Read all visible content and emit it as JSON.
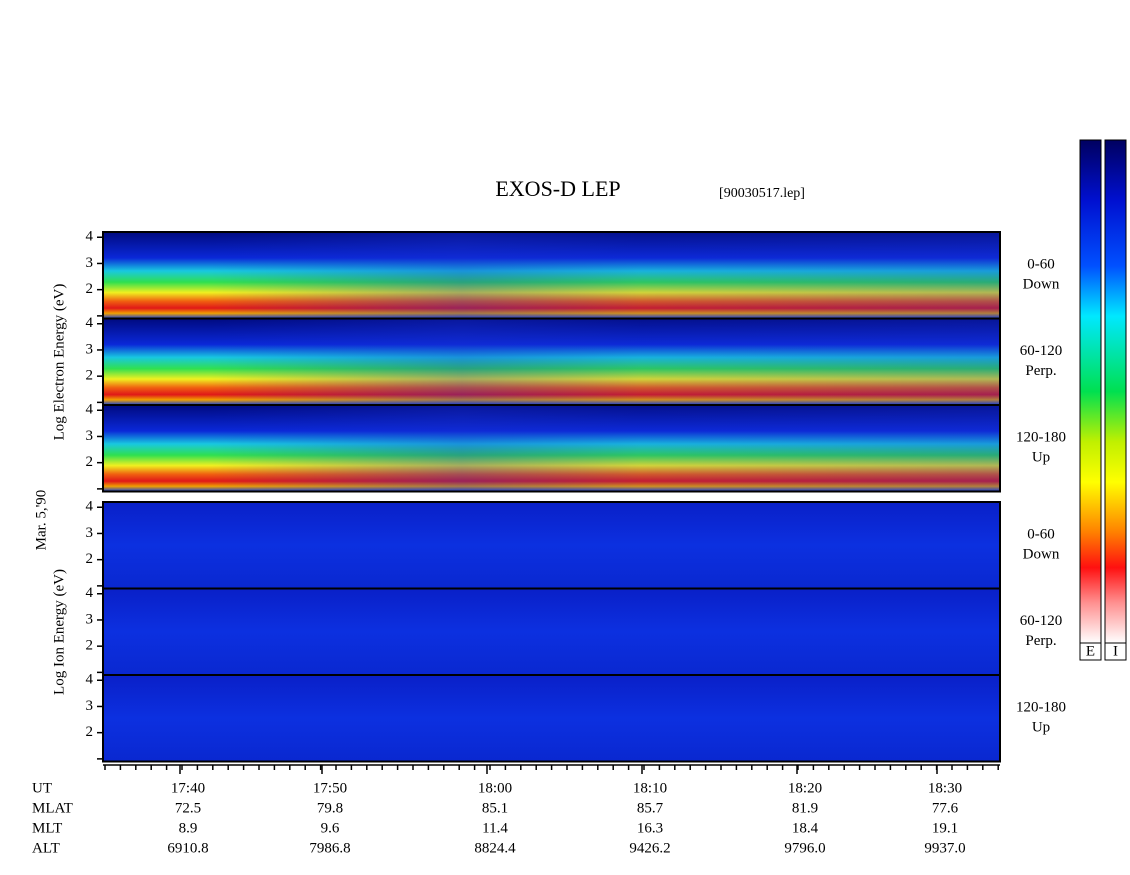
{
  "title": "EXOS-D LEP",
  "file": "[90030517.lep]",
  "date": "Mar. 5,'90",
  "energy_axis": {
    "ylim": [
      0.9,
      4.2
    ],
    "yticks": [
      2,
      3,
      4
    ]
  },
  "electron": {
    "axis_label": "Log Electron Energy (eV)",
    "panels": [
      {
        "angle": "0-60",
        "direction": "Down"
      },
      {
        "angle": "60-120",
        "direction": "Perp."
      },
      {
        "angle": "120-180",
        "direction": "Up"
      }
    ]
  },
  "ion": {
    "axis_label": "Log Ion Energy (eV)",
    "panels": [
      {
        "angle": "0-60",
        "direction": "Down"
      },
      {
        "angle": "60-120",
        "direction": "Perp."
      },
      {
        "angle": "120-180",
        "direction": "Up"
      }
    ]
  },
  "orbit_table": {
    "rows": [
      {
        "label": "UT",
        "values": [
          "17:40",
          "17:50",
          "18:00",
          "18:10",
          "18:20",
          "18:30"
        ]
      },
      {
        "label": "MLAT",
        "values": [
          "72.5",
          "79.8",
          "85.1",
          "85.7",
          "81.9",
          "77.6"
        ]
      },
      {
        "label": "MLT",
        "values": [
          "8.9",
          "9.6",
          "11.4",
          "16.3",
          "18.4",
          "19.1"
        ]
      },
      {
        "label": "ALT",
        "values": [
          "6910.8",
          "7986.8",
          "8824.4",
          "9426.2",
          "9796.0",
          "9937.0"
        ]
      }
    ]
  },
  "colorbars": [
    "E",
    "I"
  ]
}
